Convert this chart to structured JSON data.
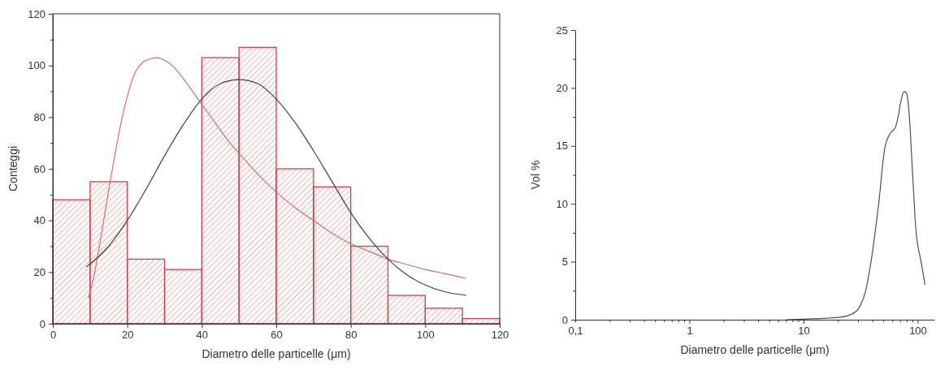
{
  "chart_data": [
    {
      "type": "histogram",
      "xlabel": "Diametro delle particelle (μm)",
      "ylabel": "Conteggi",
      "color": "#d0404a",
      "bins": [
        0,
        10,
        20,
        30,
        40,
        50,
        60,
        70,
        80,
        90,
        100,
        110,
        120
      ],
      "values": [
        48,
        55,
        25,
        21,
        103,
        107,
        60,
        53,
        30,
        11,
        6,
        2
      ],
      "series": [
        {
          "type": "line",
          "color": "#d86a6a",
          "x": [
            9.5,
            11,
            12.5,
            14,
            15.5,
            17,
            18.5,
            20,
            22,
            24,
            26,
            28,
            30,
            32,
            35,
            38,
            41,
            44,
            47,
            50,
            55,
            60,
            65,
            70,
            75,
            80,
            85,
            90,
            95,
            100,
            105,
            111
          ],
          "values": [
            10,
            18,
            30,
            43,
            56,
            68,
            79,
            88,
            97,
            101,
            102.5,
            103,
            102,
            100,
            95,
            89,
            83,
            77,
            71,
            66,
            58,
            51,
            45,
            40,
            35,
            31,
            28,
            25,
            23,
            21,
            19.5,
            17.5
          ]
        },
        {
          "type": "line",
          "color": "#404040",
          "x": [
            9,
            15,
            20,
            25,
            30,
            35,
            40,
            45,
            50,
            55,
            60,
            65,
            70,
            75,
            80,
            85,
            90,
            95,
            100,
            105,
            111
          ],
          "values": [
            22,
            30,
            40,
            52,
            65,
            77,
            87,
            93,
            94.5,
            93,
            87,
            78,
            67,
            55,
            43,
            33,
            25,
            19,
            15,
            12.5,
            11
          ]
        }
      ],
      "xlim": [
        0,
        120
      ],
      "ylim": [
        0,
        120
      ],
      "xticks": [
        0,
        20,
        40,
        60,
        80,
        100,
        120
      ],
      "yticks": [
        0,
        {
          "value": 10,
          "label": null
        },
        20,
        {
          "value": 30,
          "label": null
        },
        40,
        {
          "value": 50,
          "label": null
        },
        60,
        {
          "value": 70,
          "label": null
        },
        80,
        {
          "value": 90,
          "label": null
        },
        100,
        {
          "value": 110,
          "label": null
        },
        120
      ]
    },
    {
      "type": "line",
      "xlabel": "Diametro delle particelle (μm)",
      "ylabel": "Vol %",
      "color": "#505050",
      "log": "x",
      "x": [
        7,
        10,
        20.3,
        26.7,
        31.4,
        35,
        39,
        45.5,
        51.9,
        58.8,
        63.8,
        67.3,
        71.9,
        75.9,
        80.2,
        83.8,
        90.9,
        96,
        107,
        116
      ],
      "values": [
        0,
        0.05,
        0.2,
        0.5,
        1.2,
        2.5,
        5,
        10,
        15,
        16.2,
        16.6,
        17.5,
        19,
        19.7,
        19.5,
        18,
        12,
        8,
        5,
        3
      ],
      "xlim": [
        0.1,
        140
      ],
      "ylim": [
        0,
        25
      ],
      "xticks": [
        {
          "value": 0.1,
          "label": "0,1"
        },
        {
          "value": 0.2,
          "label": null
        },
        {
          "value": 0.3,
          "label": null
        },
        {
          "value": 0.4,
          "label": null
        },
        {
          "value": 0.5,
          "label": null
        },
        {
          "value": 0.6,
          "label": null
        },
        {
          "value": 0.7,
          "label": null
        },
        {
          "value": 0.8,
          "label": null
        },
        {
          "value": 0.9,
          "label": null
        },
        1,
        {
          "value": 2,
          "label": null
        },
        {
          "value": 3,
          "label": null
        },
        {
          "value": 4,
          "label": null
        },
        {
          "value": 5,
          "label": null
        },
        {
          "value": 6,
          "label": null
        },
        {
          "value": 7,
          "label": null
        },
        {
          "value": 8,
          "label": null
        },
        {
          "value": 9,
          "label": null
        },
        10,
        {
          "value": 20,
          "label": null
        },
        {
          "value": 30,
          "label": null
        },
        {
          "value": 40,
          "label": null
        },
        {
          "value": 50,
          "label": null
        },
        {
          "value": 60,
          "label": null
        },
        {
          "value": 70,
          "label": null
        },
        {
          "value": 80,
          "label": null
        },
        {
          "value": 90,
          "label": null
        },
        100
      ],
      "yticks": [
        0,
        {
          "value": 2.5,
          "label": null
        },
        5,
        {
          "value": 7.5,
          "label": null
        },
        10,
        {
          "value": 12.5,
          "label": null
        },
        15,
        {
          "value": 17.5,
          "label": null
        },
        20,
        {
          "value": 22.5,
          "label": null
        },
        25
      ]
    }
  ]
}
